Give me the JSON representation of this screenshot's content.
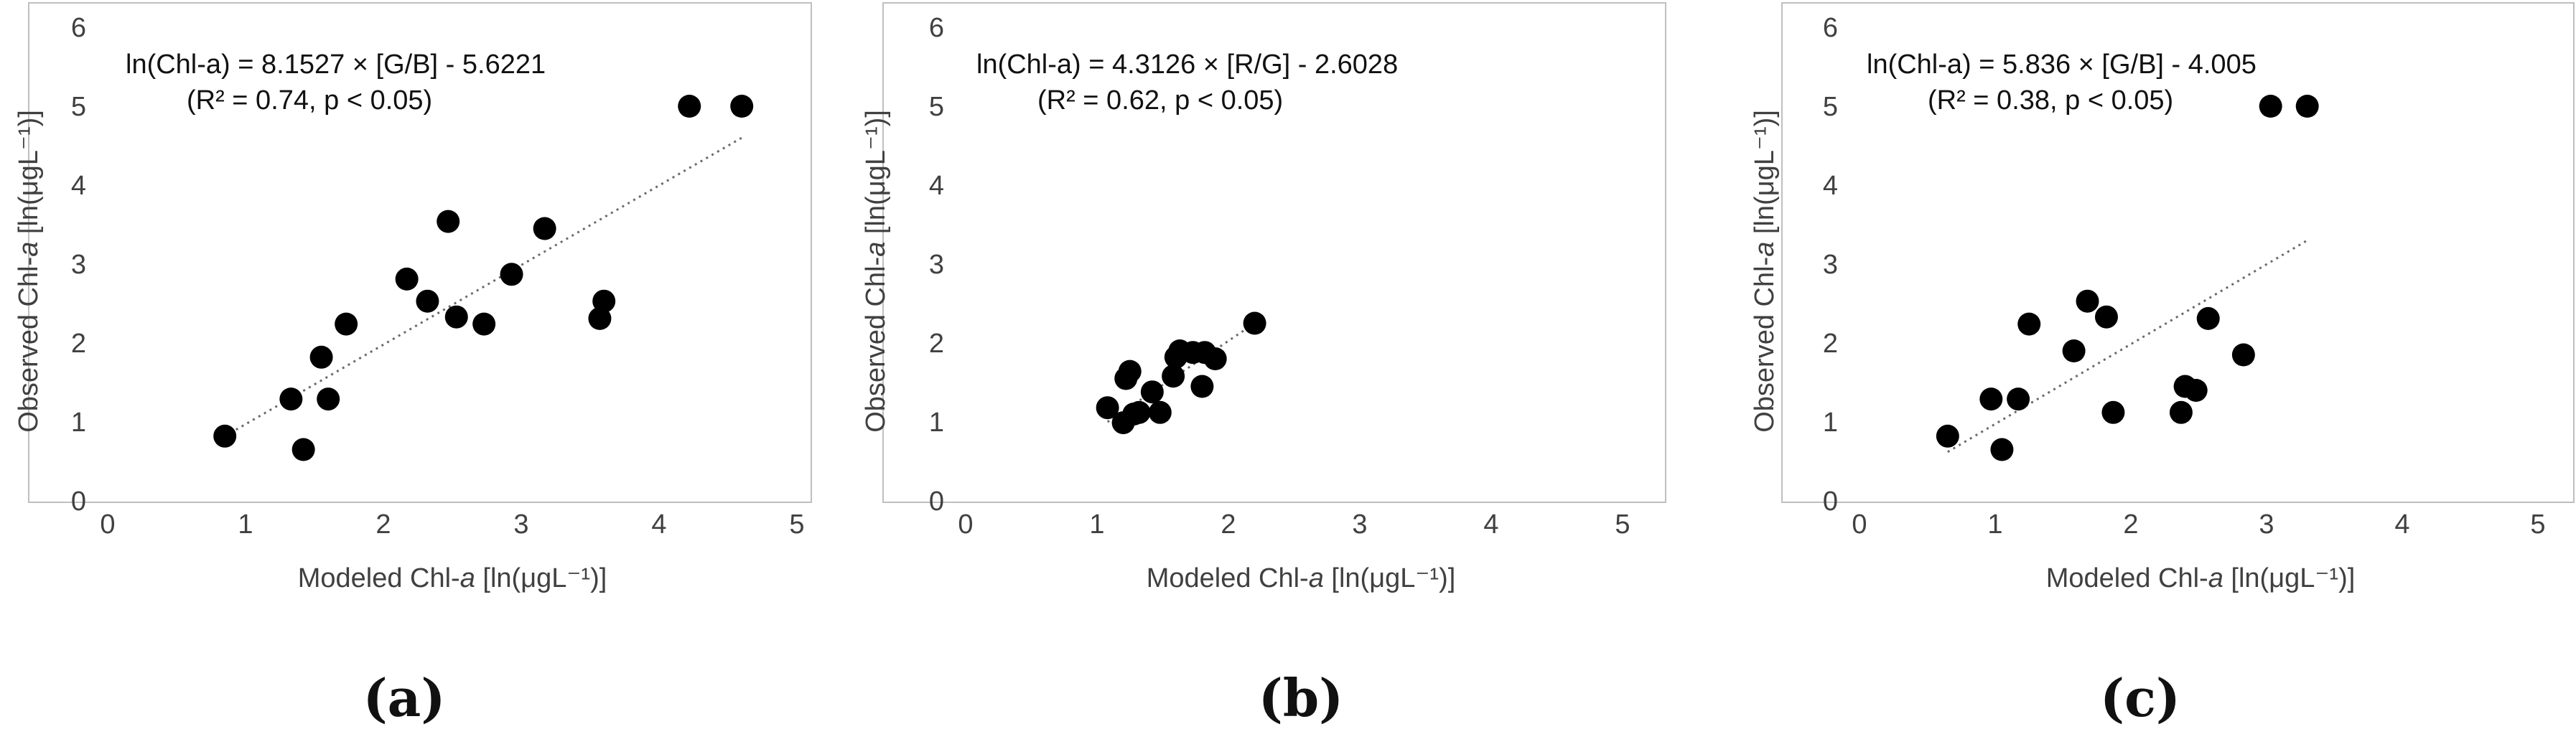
{
  "chart_data": [
    {
      "type": "scatter",
      "caption": "(a)",
      "xlabel_pre": "Modeled Chl-",
      "xlabel_italic": "a",
      "xlabel_post": " [ln(μgL⁻¹)]",
      "ylabel_pre": "Observed Chl-",
      "ylabel_italic": "a",
      "ylabel_post": " [ln(μgL⁻¹)]",
      "xlim": [
        0,
        5
      ],
      "ylim": [
        0,
        6
      ],
      "xticks": [
        "0",
        "1",
        "2",
        "3",
        "4",
        "5"
      ],
      "yticks": [
        "0",
        "1",
        "2",
        "3",
        "4",
        "5",
        "6"
      ],
      "equation_line1": "ln(Chl-a) = 8.1527 × [G/B] - 5.6221",
      "equation_line2": "(R² = 0.74, p < 0.05)",
      "trendline": {
        "x": [
          0.85,
          4.6
        ],
        "y": [
          0.82,
          4.6
        ]
      },
      "points": [
        {
          "x": 0.85,
          "y": 0.82
        },
        {
          "x": 1.33,
          "y": 1.29
        },
        {
          "x": 1.42,
          "y": 0.65
        },
        {
          "x": 1.55,
          "y": 1.82
        },
        {
          "x": 1.6,
          "y": 1.29
        },
        {
          "x": 1.73,
          "y": 2.24
        },
        {
          "x": 2.17,
          "y": 2.81
        },
        {
          "x": 2.32,
          "y": 2.53
        },
        {
          "x": 2.47,
          "y": 3.54
        },
        {
          "x": 2.53,
          "y": 2.33
        },
        {
          "x": 2.73,
          "y": 2.24
        },
        {
          "x": 2.93,
          "y": 2.87
        },
        {
          "x": 3.17,
          "y": 3.45
        },
        {
          "x": 3.57,
          "y": 2.31
        },
        {
          "x": 3.6,
          "y": 2.53
        },
        {
          "x": 4.22,
          "y": 5.0
        },
        {
          "x": 4.6,
          "y": 5.0
        }
      ]
    },
    {
      "type": "scatter",
      "caption": "(b)",
      "xlabel_pre": "Modeled Chl-",
      "xlabel_italic": "a",
      "xlabel_post": " [ln(μgL⁻¹)]",
      "ylabel_pre": "Observed Chl-",
      "ylabel_italic": "a",
      "ylabel_post": " [ln(μgL⁻¹)]",
      "xlim": [
        0,
        5
      ],
      "ylim": [
        0,
        6
      ],
      "xticks": [
        "0",
        "1",
        "2",
        "3",
        "4",
        "5"
      ],
      "yticks": [
        "0",
        "1",
        "2",
        "3",
        "4",
        "5",
        "6"
      ],
      "equation_line1": "ln(Chl-a) = 4.3126 × [R/G] - 2.6028",
      "equation_line2": "(R² = 0.62, p < 0.05)",
      "trendline": {
        "x": [
          1.08,
          2.2
        ],
        "y": [
          1.0,
          2.25
        ]
      },
      "points": [
        {
          "x": 1.08,
          "y": 1.18
        },
        {
          "x": 1.2,
          "y": 0.99
        },
        {
          "x": 1.22,
          "y": 1.55
        },
        {
          "x": 1.25,
          "y": 1.64
        },
        {
          "x": 1.28,
          "y": 1.1
        },
        {
          "x": 1.32,
          "y": 1.12
        },
        {
          "x": 1.42,
          "y": 1.38
        },
        {
          "x": 1.48,
          "y": 1.12
        },
        {
          "x": 1.58,
          "y": 1.58
        },
        {
          "x": 1.6,
          "y": 1.82
        },
        {
          "x": 1.63,
          "y": 1.9
        },
        {
          "x": 1.73,
          "y": 1.88
        },
        {
          "x": 1.8,
          "y": 1.45
        },
        {
          "x": 1.82,
          "y": 1.88
        },
        {
          "x": 1.9,
          "y": 1.8
        },
        {
          "x": 2.2,
          "y": 2.25
        }
      ]
    },
    {
      "type": "scatter",
      "caption": "(c)",
      "xlabel_pre": "Modeled Chl-",
      "xlabel_italic": "a",
      "xlabel_post": " [ln(μgL⁻¹)]",
      "ylabel_pre": "Observed Chl-",
      "ylabel_italic": "a",
      "ylabel_post": " [ln(μgL⁻¹)]",
      "xlim": [
        0,
        5
      ],
      "ylim": [
        0,
        6
      ],
      "xticks": [
        "0",
        "1",
        "2",
        "3",
        "4",
        "5"
      ],
      "yticks": [
        "0",
        "1",
        "2",
        "3",
        "4",
        "5",
        "6"
      ],
      "equation_line1": "ln(Chl-a) = 5.836 × [G/B] - 4.005",
      "equation_line2": "(R² = 0.38, p < 0.05)",
      "trendline": {
        "x": [
          0.65,
          3.3
        ],
        "y": [
          0.62,
          3.3
        ]
      },
      "points": [
        {
          "x": 0.65,
          "y": 0.82
        },
        {
          "x": 0.97,
          "y": 1.29
        },
        {
          "x": 1.05,
          "y": 0.65
        },
        {
          "x": 1.17,
          "y": 1.29
        },
        {
          "x": 1.25,
          "y": 2.24
        },
        {
          "x": 1.58,
          "y": 1.9
        },
        {
          "x": 1.68,
          "y": 2.53
        },
        {
          "x": 1.82,
          "y": 2.33
        },
        {
          "x": 1.87,
          "y": 1.12
        },
        {
          "x": 2.37,
          "y": 1.12
        },
        {
          "x": 2.4,
          "y": 1.45
        },
        {
          "x": 2.48,
          "y": 1.4
        },
        {
          "x": 2.57,
          "y": 2.31
        },
        {
          "x": 2.83,
          "y": 1.85
        },
        {
          "x": 3.03,
          "y": 5.0
        },
        {
          "x": 3.3,
          "y": 5.0
        }
      ]
    }
  ]
}
